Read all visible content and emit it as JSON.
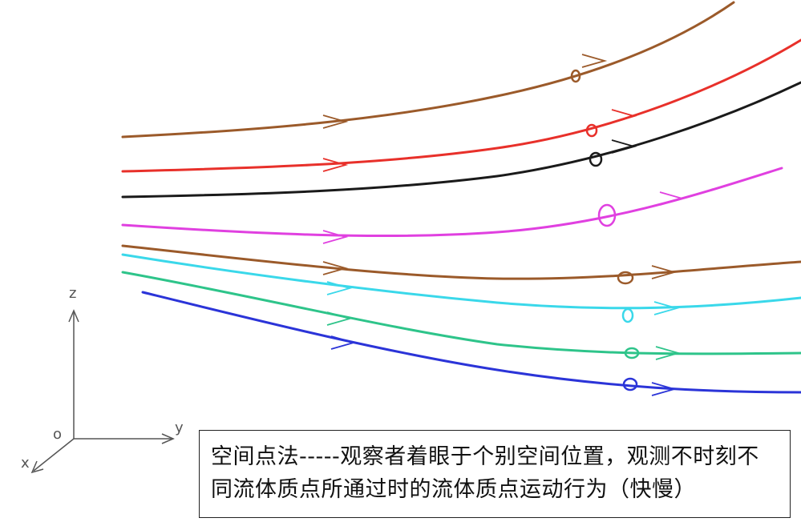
{
  "axes": {
    "z_label": "z",
    "y_label": "y",
    "x_label": "x",
    "origin_label": "o",
    "color": "#555555"
  },
  "streamlines": [
    {
      "color": "#9b5a2a"
    },
    {
      "color": "#e8302a"
    },
    {
      "color": "#1a1a1a"
    },
    {
      "color": "#e040e0"
    },
    {
      "color": "#9b5a2a"
    },
    {
      "color": "#3ad8ea"
    },
    {
      "color": "#2ec48a"
    },
    {
      "color": "#2b34d8"
    }
  ],
  "caption": {
    "line1": "空间点法-----观察者着眼于个别空间位置，观测不时刻不",
    "line2": "同流体质点所通过时的流体质点运动行为（快慢）"
  }
}
